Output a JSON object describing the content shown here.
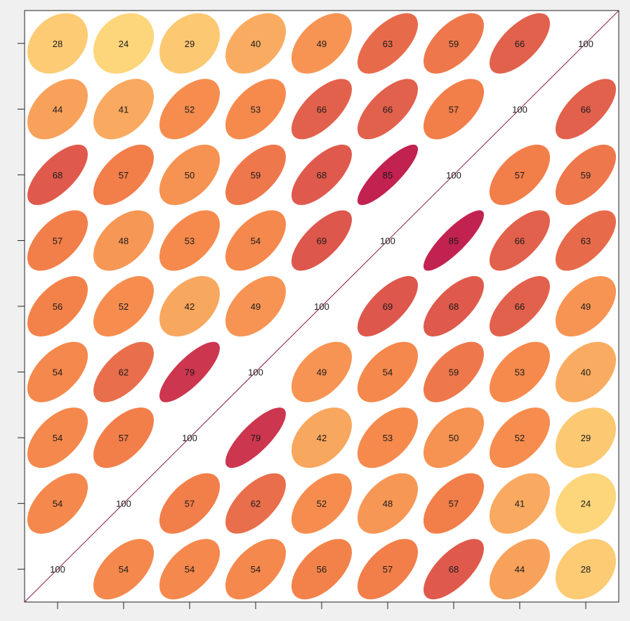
{
  "chart_data": {
    "type": "heatmap",
    "subtype": "correlation-ellipse-matrix",
    "title": "",
    "xlabel": "",
    "ylabel": "",
    "n": 9,
    "rows_top_to_bottom": [
      [
        28,
        24,
        29,
        40,
        49,
        63,
        59,
        66,
        100
      ],
      [
        44,
        41,
        52,
        53,
        66,
        66,
        57,
        100,
        66
      ],
      [
        68,
        57,
        50,
        59,
        68,
        85,
        100,
        57,
        59
      ],
      [
        57,
        48,
        53,
        54,
        69,
        100,
        85,
        66,
        63
      ],
      [
        56,
        52,
        42,
        49,
        100,
        69,
        68,
        66,
        49
      ],
      [
        54,
        62,
        79,
        100,
        49,
        54,
        59,
        53,
        40
      ],
      [
        54,
        57,
        100,
        79,
        42,
        53,
        50,
        52,
        29
      ],
      [
        54,
        100,
        57,
        62,
        52,
        48,
        57,
        41,
        24
      ],
      [
        100,
        54,
        54,
        54,
        56,
        57,
        68,
        44,
        28
      ]
    ],
    "color_scale": {
      "low": "#fdd57a",
      "mid": "#f5854a",
      "high": "#c2224f"
    },
    "diagonal_line_color": "#8b1a4a",
    "grid": false,
    "legend": "none"
  }
}
